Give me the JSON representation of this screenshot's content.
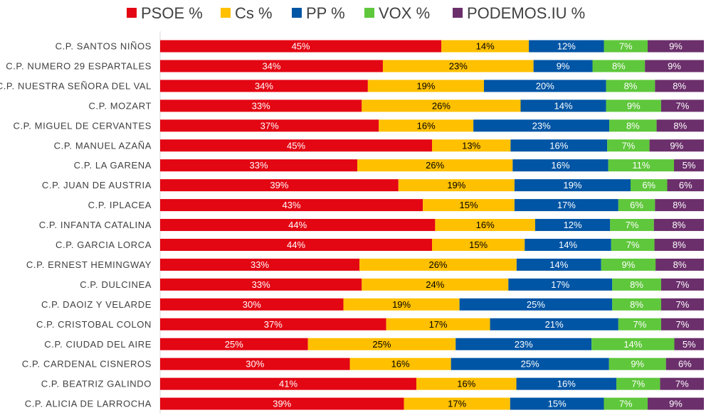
{
  "chart_data": {
    "type": "bar",
    "orientation": "horizontal",
    "stacked": true,
    "categories": [
      "C.P. SANTOS NIÑOS",
      "C.P. NUMERO 29 ESPARTALES",
      "C.P. NUESTRA SEÑORA DEL VAL",
      "C.P. MOZART",
      "C.P. MIGUEL DE CERVANTES",
      "C.P. MANUEL AZAÑA",
      "C.P. LA GARENA",
      "C.P. JUAN DE AUSTRIA",
      "C.P. IPLACEA",
      "C.P. INFANTA CATALINA",
      "C.P. GARCIA LORCA",
      "C.P. ERNEST HEMINGWAY",
      "C.P. DULCINEA",
      "C.P. DAOIZ Y VELARDE",
      "C.P. CRISTOBAL COLON",
      "C.P. CIUDAD DEL AIRE",
      "C.P. CARDENAL CISNEROS",
      "C.P. BEATRIZ GALINDO",
      "C.P. ALICIA DE LARROCHA"
    ],
    "series": [
      {
        "name": "PSOE %",
        "color": "#E30613",
        "label_color": "#ffffff",
        "values": [
          45,
          34,
          34,
          33,
          37,
          45,
          33,
          39,
          43,
          44,
          44,
          33,
          33,
          30,
          37,
          25,
          30,
          41,
          39
        ]
      },
      {
        "name": "Cs %",
        "color": "#FFC000",
        "label_color": "#000000",
        "values": [
          14,
          23,
          19,
          26,
          16,
          13,
          26,
          19,
          15,
          16,
          15,
          26,
          24,
          19,
          17,
          25,
          16,
          16,
          17
        ]
      },
      {
        "name": "PP %",
        "color": "#0055A5",
        "label_color": "#ffffff",
        "values": [
          12,
          9,
          20,
          14,
          23,
          16,
          16,
          19,
          17,
          12,
          14,
          14,
          17,
          25,
          21,
          23,
          25,
          16,
          15
        ]
      },
      {
        "name": "VOX %",
        "color": "#5FC73B",
        "label_color": "#ffffff",
        "values": [
          7,
          8,
          8,
          9,
          8,
          7,
          11,
          6,
          6,
          7,
          7,
          9,
          8,
          8,
          7,
          14,
          9,
          7,
          7
        ]
      },
      {
        "name": "PODEMOS.IU %",
        "color": "#6B2F6B",
        "label_color": "#ffffff",
        "values": [
          9,
          9,
          8,
          7,
          8,
          9,
          5,
          6,
          8,
          8,
          8,
          8,
          7,
          7,
          7,
          5,
          6,
          7,
          9
        ]
      }
    ],
    "value_suffix": "%",
    "legend_position": "top",
    "grid": false
  }
}
